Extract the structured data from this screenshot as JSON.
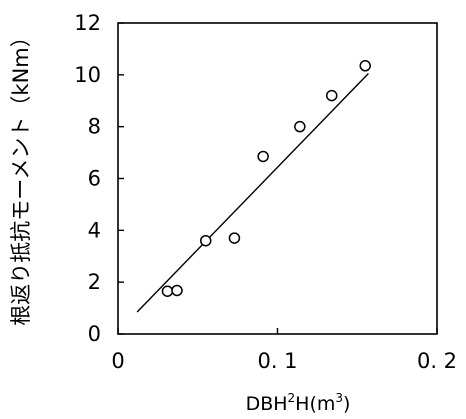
{
  "chart_data": {
    "type": "scatter",
    "xlabel": {
      "pre": "DBH",
      "sup1": "2",
      "mid": "H(m",
      "sup2": "3",
      "post": ")"
    },
    "ylabel": "根返り抵抗モーメント（kNm）",
    "xlim": [
      0,
      0.2
    ],
    "ylim": [
      0,
      12
    ],
    "x_ticks": [
      0,
      0.1,
      0.2
    ],
    "x_tick_labels": [
      "0",
      "0. 1",
      "0. 2"
    ],
    "y_ticks": [
      0,
      2,
      4,
      6,
      8,
      10,
      12
    ],
    "y_tick_labels": [
      "0",
      "2",
      "4",
      "6",
      "8",
      "10",
      "12"
    ],
    "grid": false,
    "points": [
      {
        "x": 0.031,
        "y": 1.65
      },
      {
        "x": 0.037,
        "y": 1.68
      },
      {
        "x": 0.055,
        "y": 3.6
      },
      {
        "x": 0.073,
        "y": 3.7
      },
      {
        "x": 0.091,
        "y": 6.85
      },
      {
        "x": 0.114,
        "y": 8.0
      },
      {
        "x": 0.134,
        "y": 9.2
      },
      {
        "x": 0.155,
        "y": 10.35
      }
    ],
    "fit_line": {
      "x": [
        0.012,
        0.157
      ],
      "y": [
        0.85,
        10.05
      ]
    }
  }
}
